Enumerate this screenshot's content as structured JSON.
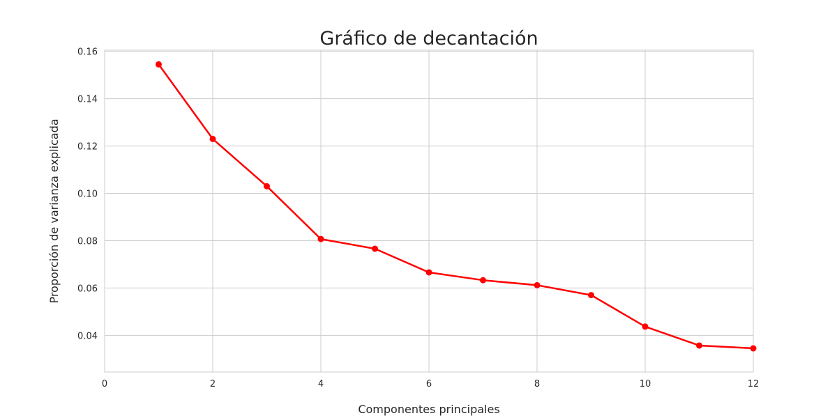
{
  "chart_data": {
    "type": "line",
    "title": "Gráfico de decantación",
    "xlabel": "Componentes principales",
    "ylabel": "Proporción de varianza explicada",
    "xlim": [
      0,
      12
    ],
    "ylim": [
      0.0245,
      0.1605
    ],
    "x_ticks": [
      0,
      2,
      4,
      6,
      8,
      10,
      12
    ],
    "y_ticks": [
      0.04,
      0.06,
      0.08,
      0.1,
      0.12,
      0.14,
      0.16
    ],
    "y_tick_labels": [
      "0.04",
      "0.06",
      "0.08",
      "0.10",
      "0.12",
      "0.14",
      "0.16"
    ],
    "grid": true,
    "series": [
      {
        "color": "#ff0000",
        "x": [
          1,
          2,
          3,
          4,
          5,
          6,
          7,
          8,
          9,
          10,
          11,
          12
        ],
        "y": [
          0.1545,
          0.123,
          0.103,
          0.0807,
          0.0766,
          0.0666,
          0.0633,
          0.0612,
          0.057,
          0.0437,
          0.0357,
          0.0345
        ]
      }
    ]
  }
}
